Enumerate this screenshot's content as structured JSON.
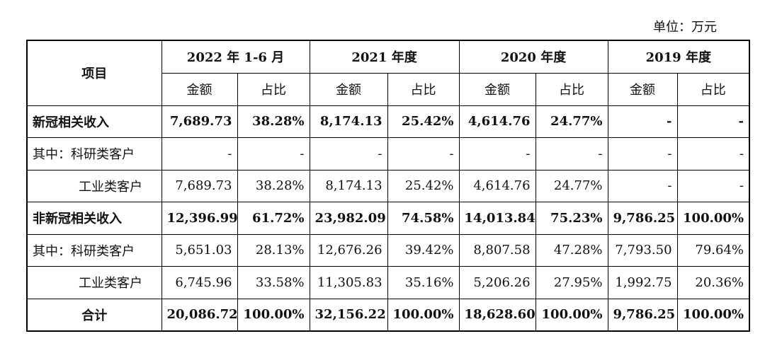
{
  "unit_label": "单位：万元",
  "table": {
    "item_header": "项目",
    "periods": [
      "2022 年 1-6 月",
      "2021 年度",
      "2020 年度",
      "2019 年度"
    ],
    "sub_headers": {
      "amount": "金额",
      "ratio": "占比"
    },
    "rows": [
      {
        "label": "新冠相关收入",
        "bold": true,
        "indent": false,
        "cells": [
          "7,689.73",
          "38.28%",
          "8,174.13",
          "25.42%",
          "4,614.76",
          "24.77%",
          "-",
          "-"
        ]
      },
      {
        "label": "其中：科研类客户",
        "bold": false,
        "indent": false,
        "cells": [
          "-",
          "-",
          "-",
          "-",
          "-",
          "-",
          "-",
          "-"
        ]
      },
      {
        "label": "工业类客户",
        "bold": false,
        "indent": true,
        "cells": [
          "7,689.73",
          "38.28%",
          "8,174.13",
          "25.42%",
          "4,614.76",
          "24.77%",
          "-",
          "-"
        ]
      },
      {
        "label": "非新冠相关收入",
        "bold": true,
        "indent": false,
        "cells": [
          "12,396.99",
          "61.72%",
          "23,982.09",
          "74.58%",
          "14,013.84",
          "75.23%",
          "9,786.25",
          "100.00%"
        ]
      },
      {
        "label": "其中：科研类客户",
        "bold": false,
        "indent": false,
        "cells": [
          "5,651.03",
          "28.13%",
          "12,676.26",
          "39.42%",
          "8,807.58",
          "47.28%",
          "7,793.50",
          "79.64%"
        ]
      },
      {
        "label": "工业类客户",
        "bold": false,
        "indent": true,
        "cells": [
          "6,745.96",
          "33.58%",
          "11,305.83",
          "35.16%",
          "5,206.26",
          "27.95%",
          "1,992.75",
          "20.36%"
        ]
      },
      {
        "label": "合计",
        "bold": true,
        "indent": false,
        "center": true,
        "cells": [
          "20,086.72",
          "100.00%",
          "32,156.22",
          "100.00%",
          "18,628.60",
          "100.00%",
          "9,786.25",
          "100.00%"
        ]
      }
    ]
  }
}
